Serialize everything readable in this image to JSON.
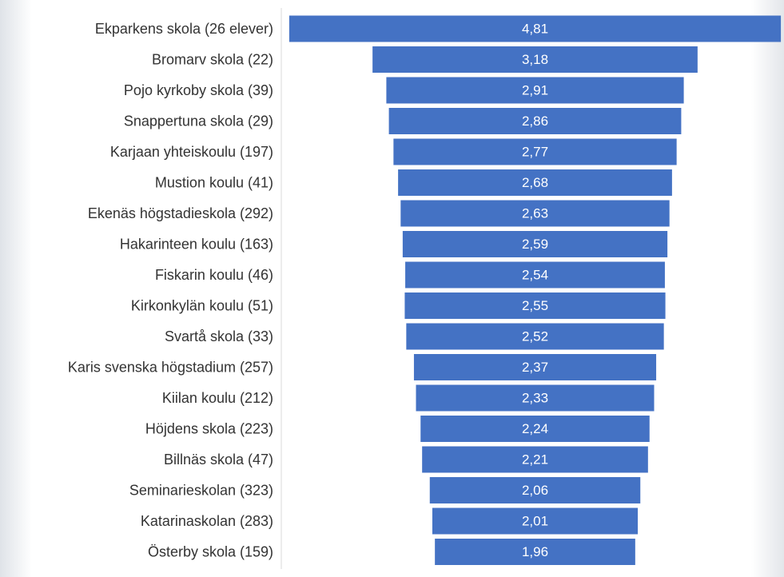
{
  "chart_data": {
    "type": "funnel",
    "categories": [
      "Ekparkens skola  (26 elever)",
      "Bromarv skola (22)",
      "Pojo kyrkoby skola (39)",
      "Snappertuna skola (29)",
      "Karjaan yhteiskoulu (197)",
      "Mustion koulu (41)",
      "Ekenäs högstadieskola (292)",
      "Hakarinteen koulu (163)",
      "Fiskarin koulu (46)",
      "Kirkonkylän koulu (51)",
      "Svartå skola (33)",
      "Karis svenska högstadium (257)",
      "Kiilan koulu (212)",
      "Höjdens skola (223)",
      "Billnäs skola (47)",
      "Seminarieskolan (323)",
      "Katarinaskolan (283)",
      "Österby skola (159)"
    ],
    "values": [
      4.81,
      3.18,
      2.91,
      2.86,
      2.77,
      2.68,
      2.63,
      2.59,
      2.54,
      2.55,
      2.52,
      2.37,
      2.33,
      2.24,
      2.21,
      2.06,
      2.01,
      1.96
    ],
    "value_labels": [
      "4,81",
      "3,18",
      "2,91",
      "2,86",
      "2,77",
      "2,68",
      "2,63",
      "2,59",
      "2,54",
      "2,55",
      "2,52",
      "2,37",
      "2,33",
      "2,24",
      "2,21",
      "2,06",
      "2,01",
      "1,96"
    ],
    "color": "#4472c4"
  }
}
